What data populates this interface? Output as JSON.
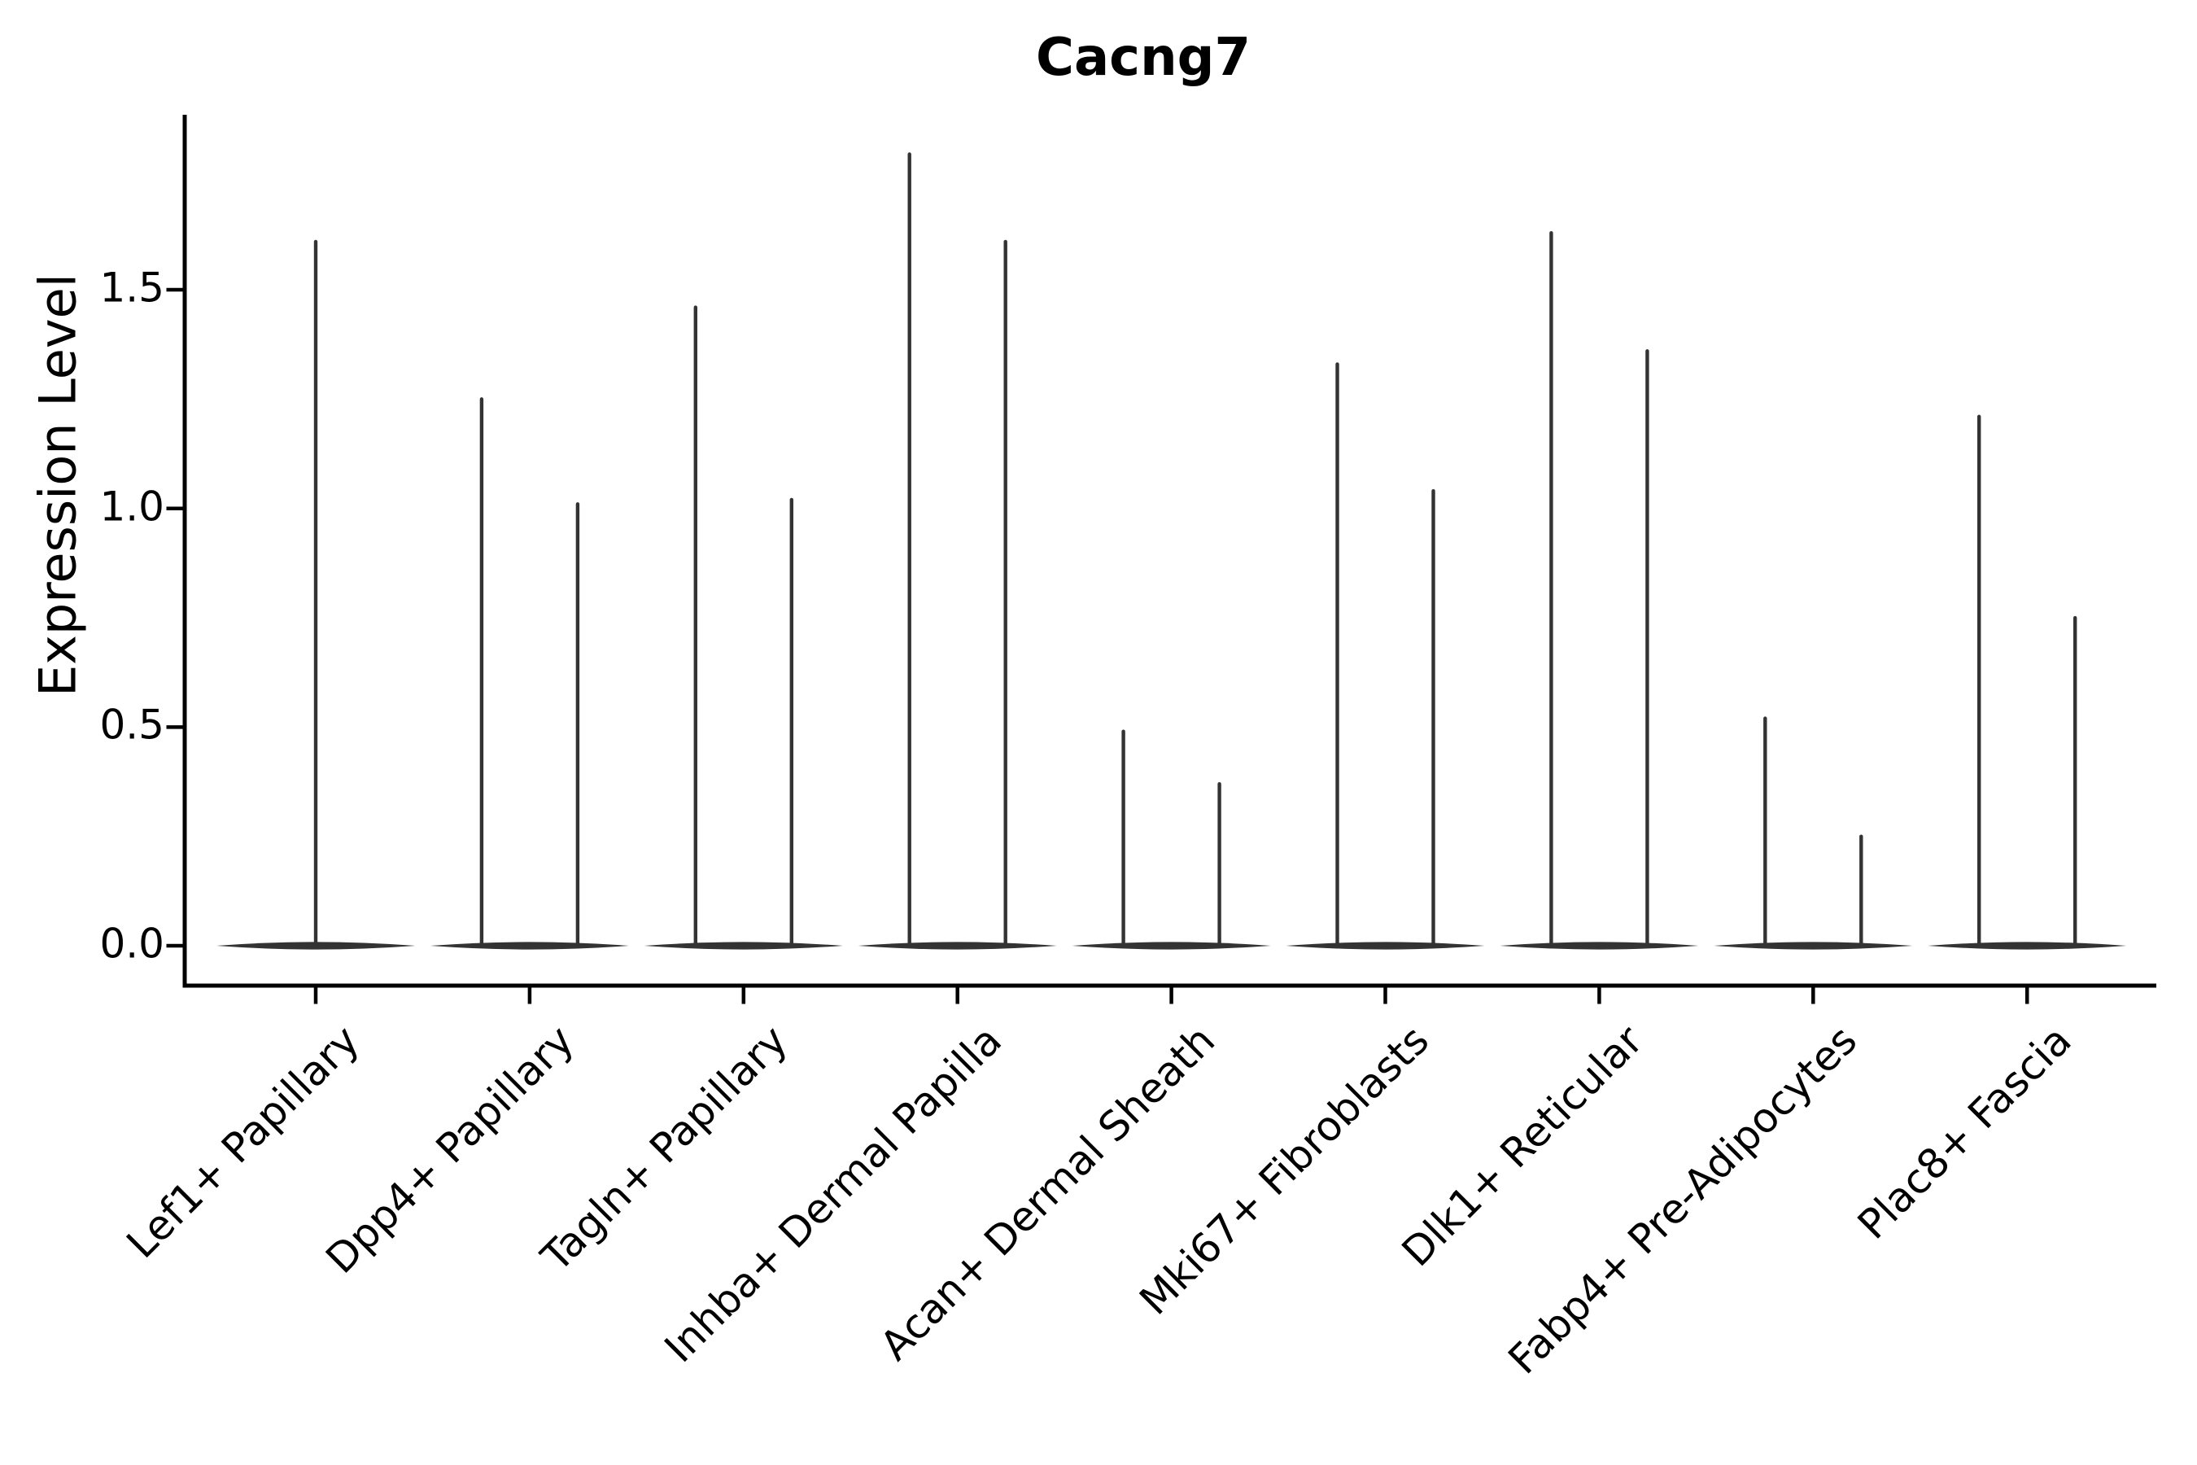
{
  "chart_data": {
    "type": "violin",
    "title": "Cacng7",
    "ylabel": "Expression Level",
    "xlabel": "",
    "ylim": [
      -0.09,
      1.9
    ],
    "grid": false,
    "legend": false,
    "yticks": [
      {
        "value": 0.0,
        "label": "0.0"
      },
      {
        "value": 0.5,
        "label": "0.5"
      },
      {
        "value": 1.0,
        "label": "1.0"
      },
      {
        "value": 1.5,
        "label": "1.5"
      }
    ],
    "categories": [
      "Lef1+ Papillary",
      "Dpp4+ Papillary",
      "Tagln+ Papillary",
      "Inhba+ Dermal Papilla",
      "Acan+ Dermal Sheath",
      "Mki67+ Fibroblasts",
      "Dlk1+ Reticular",
      "Fabp4+ Pre-Adipocytes",
      "Plac8+ Fascia"
    ],
    "violins": [
      {
        "category": "Lef1+ Papillary",
        "spike_maxima": [
          1.61
        ],
        "bulk_at": 0.0
      },
      {
        "category": "Dpp4+ Papillary",
        "spike_maxima": [
          1.25,
          1.01
        ],
        "bulk_at": 0.0
      },
      {
        "category": "Tagln+ Papillary",
        "spike_maxima": [
          1.46,
          1.02
        ],
        "bulk_at": 0.0
      },
      {
        "category": "Inhba+ Dermal Papilla",
        "spike_maxima": [
          1.81,
          1.61
        ],
        "bulk_at": 0.0
      },
      {
        "category": "Acan+ Dermal Sheath",
        "spike_maxima": [
          0.49,
          0.37
        ],
        "bulk_at": 0.0
      },
      {
        "category": "Mki67+ Fibroblasts",
        "spike_maxima": [
          1.33,
          1.04
        ],
        "bulk_at": 0.0
      },
      {
        "category": "Dlk1+ Reticular",
        "spike_maxima": [
          1.63,
          1.36
        ],
        "bulk_at": 0.0
      },
      {
        "category": "Fabp4+ Pre-Adipocytes",
        "spike_maxima": [
          0.52,
          0.25
        ],
        "bulk_at": 0.0
      },
      {
        "category": "Plac8+ Fascia",
        "spike_maxima": [
          1.21,
          0.75
        ],
        "bulk_at": 0.0
      }
    ],
    "colors": {
      "violin": "#333333",
      "axis": "#000000",
      "text": "#000000",
      "background": "#ffffff"
    }
  }
}
